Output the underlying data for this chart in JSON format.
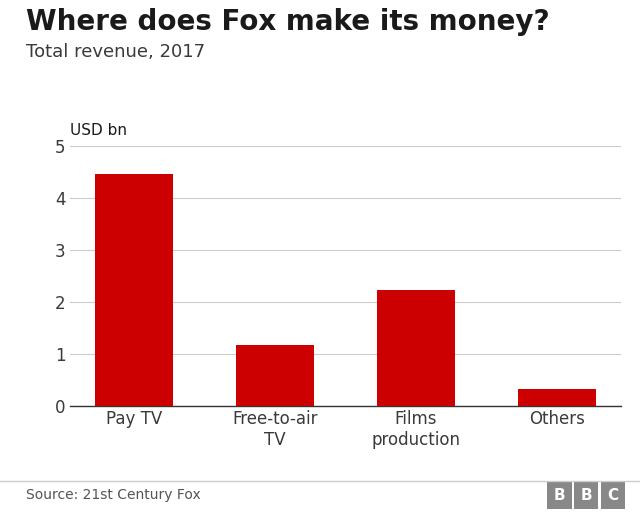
{
  "title": "Where does Fox make its money?",
  "subtitle": "Total revenue, 2017",
  "ylabel": "USD bn",
  "source": "Source: 21st Century Fox",
  "categories": [
    "Pay TV",
    "Free-to-air\nTV",
    "Films\nproduction",
    "Others"
  ],
  "values": [
    4.45,
    1.17,
    2.22,
    0.31
  ],
  "bar_color": "#cc0000",
  "background_color": "#ffffff",
  "ylim": [
    0,
    5
  ],
  "yticks": [
    0,
    1,
    2,
    3,
    4,
    5
  ],
  "title_fontsize": 20,
  "subtitle_fontsize": 13,
  "ylabel_fontsize": 11,
  "tick_fontsize": 12,
  "source_fontsize": 10,
  "bbc_fontsize": 11,
  "title_color": "#1a1a1a",
  "subtitle_color": "#3a3a3a",
  "tick_color": "#3a3a3a",
  "source_color": "#555555",
  "grid_color": "#cccccc",
  "axis_color": "#333333",
  "bbc_box_color": "#888888",
  "separator_color": "#cccccc"
}
